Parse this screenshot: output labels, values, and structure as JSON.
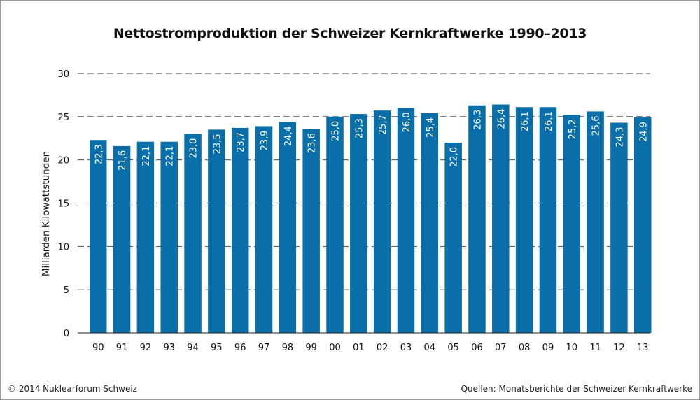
{
  "chart_data": {
    "type": "bar",
    "title": "Nettostromproduktion der Schweizer Kernkraftwerke 1990–2013",
    "ylabel": "Milliarden Kilowattstunden",
    "xlabel": "",
    "ylim": [
      0,
      30
    ],
    "yticks": [
      0,
      5,
      10,
      15,
      20,
      25,
      30
    ],
    "grid": true,
    "color": "#0a6fa8",
    "categories": [
      "90",
      "91",
      "92",
      "93",
      "94",
      "95",
      "96",
      "97",
      "98",
      "99",
      "00",
      "01",
      "02",
      "03",
      "04",
      "05",
      "06",
      "07",
      "08",
      "09",
      "10",
      "11",
      "12",
      "13"
    ],
    "values": [
      22.3,
      21.6,
      22.1,
      22.1,
      23.0,
      23.5,
      23.7,
      23.9,
      24.4,
      23.6,
      25.0,
      25.3,
      25.7,
      26.0,
      25.4,
      22.0,
      26.3,
      26.4,
      26.1,
      26.1,
      25.2,
      25.6,
      24.3,
      24.9
    ],
    "labels": [
      "22,3",
      "21,6",
      "22,1",
      "22,1",
      "23,0",
      "23,5",
      "23,7",
      "23,9",
      "24,4",
      "23,6",
      "25,0",
      "25,3",
      "25,7",
      "26,0",
      "25,4",
      "22,0",
      "26,3",
      "26,4",
      "26,1",
      "26,1",
      "25,2",
      "25,6",
      "24,3",
      "24,9"
    ]
  },
  "footer": {
    "copyright": "© 2014 Nuklearforum Schweiz",
    "source": "Quellen: Monatsberichte der Schweizer Kernkraftwerke"
  }
}
